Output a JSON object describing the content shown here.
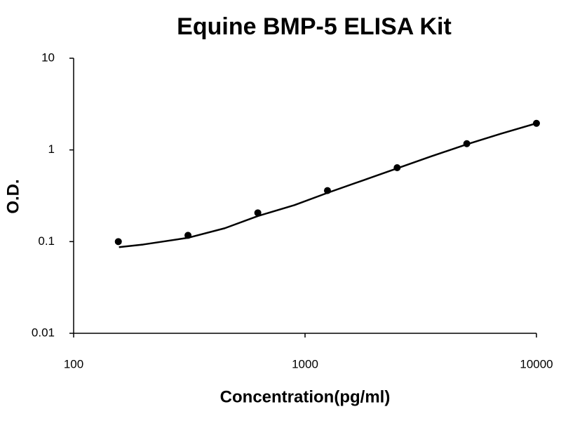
{
  "chart_data": {
    "type": "scatter",
    "title": "Equine BMP-5 ELISA Kit",
    "x_label": "Concentration(pg/ml)",
    "y_label": "O.D.",
    "xscale": "log",
    "yscale": "log",
    "xlim": [
      100,
      10000
    ],
    "ylim": [
      0.01,
      10
    ],
    "xticks": [
      100,
      1000,
      10000
    ],
    "yticks": [
      0.01,
      0.1,
      1,
      10
    ],
    "series": [
      {
        "type": "scatter",
        "color": "#000000",
        "x": [
          156,
          312,
          625,
          1250,
          2500,
          5000,
          10000
        ],
        "values": [
          0.1,
          0.117,
          0.206,
          0.36,
          0.64,
          1.17,
          1.95
        ]
      },
      {
        "type": "line",
        "color": "#000000",
        "x": [
          157,
          200,
          312,
          450,
          625,
          900,
          1250,
          1800,
          2500,
          3500,
          5000,
          7000,
          10000
        ],
        "values": [
          0.087,
          0.093,
          0.11,
          0.14,
          0.19,
          0.25,
          0.34,
          0.47,
          0.63,
          0.85,
          1.15,
          1.5,
          1.95
        ]
      }
    ]
  }
}
